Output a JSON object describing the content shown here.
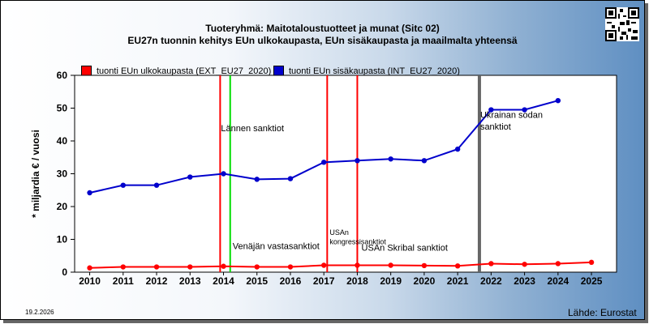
{
  "title_line1": "Tuoteryhmä: Maitotaloustuotteet ja munat (Sitc 02)",
  "title_line2": "EU27n tuonnin kehitys EUn ulkokaupasta, EUn sisäkaupasta ja maailmalta yhteensä",
  "date": "19.2.2026",
  "source": "Lähde: Eurostat",
  "chart_data": {
    "type": "line",
    "ylabel": "* miljardia € / vuosi",
    "xlabel": "",
    "x": [
      2010,
      2011,
      2012,
      2013,
      2014,
      2015,
      2016,
      2017,
      2018,
      2019,
      2020,
      2021,
      2022,
      2023,
      2024,
      2025
    ],
    "xlim": [
      2009.55,
      2025.75
    ],
    "ylim": [
      0,
      60
    ],
    "yticks": [
      0,
      10,
      20,
      30,
      40,
      50,
      60
    ],
    "grid": false,
    "legend": "top-left",
    "series": [
      {
        "name": "tuonti EUn ulkokaupasta (EXT_EU27_2020)",
        "color": "#ff0000",
        "values": [
          1.3,
          1.6,
          1.6,
          1.6,
          1.8,
          1.6,
          1.6,
          2.1,
          2.1,
          2.1,
          2.0,
          1.9,
          2.6,
          2.4,
          2.6,
          3.0
        ]
      },
      {
        "name": "tuonti EUn sisäkaupasta (INT_EU27_2020)",
        "color": "#0000cc",
        "values": [
          24.2,
          26.5,
          26.5,
          29.0,
          30.0,
          28.3,
          28.5,
          33.5,
          34.0,
          34.5,
          34.0,
          37.5,
          49.5,
          49.5,
          52.3,
          null
        ]
      }
    ],
    "events": [
      {
        "x": 2013.9,
        "color": "#ff0000",
        "label": "Lännen sanktiot",
        "label_x": 2013.9,
        "label_y": 43
      },
      {
        "x": 2014.2,
        "color": "#00dd00",
        "label": "Venäjän vastasanktiot",
        "label_x": 2014.25,
        "label_y": 7
      },
      {
        "x": 2017.1,
        "color": "#ff0000",
        "label": "USAn",
        "label2": "kongressisanktiot",
        "label_x": 2017.15,
        "label_y": 11.3,
        "label2_y": 8.5
      },
      {
        "x": 2018.0,
        "color": "#ff0000",
        "label": "USAn Skribal sanktiot",
        "label_x": 2018.1,
        "label_y": 6.5
      },
      {
        "x": 2021.65,
        "color": "#666666",
        "label": "Ukrainan sodan",
        "label2": "sanktiot",
        "label_x": 2021.65,
        "label_y": 47,
        "label2_y": 43.5
      }
    ]
  }
}
